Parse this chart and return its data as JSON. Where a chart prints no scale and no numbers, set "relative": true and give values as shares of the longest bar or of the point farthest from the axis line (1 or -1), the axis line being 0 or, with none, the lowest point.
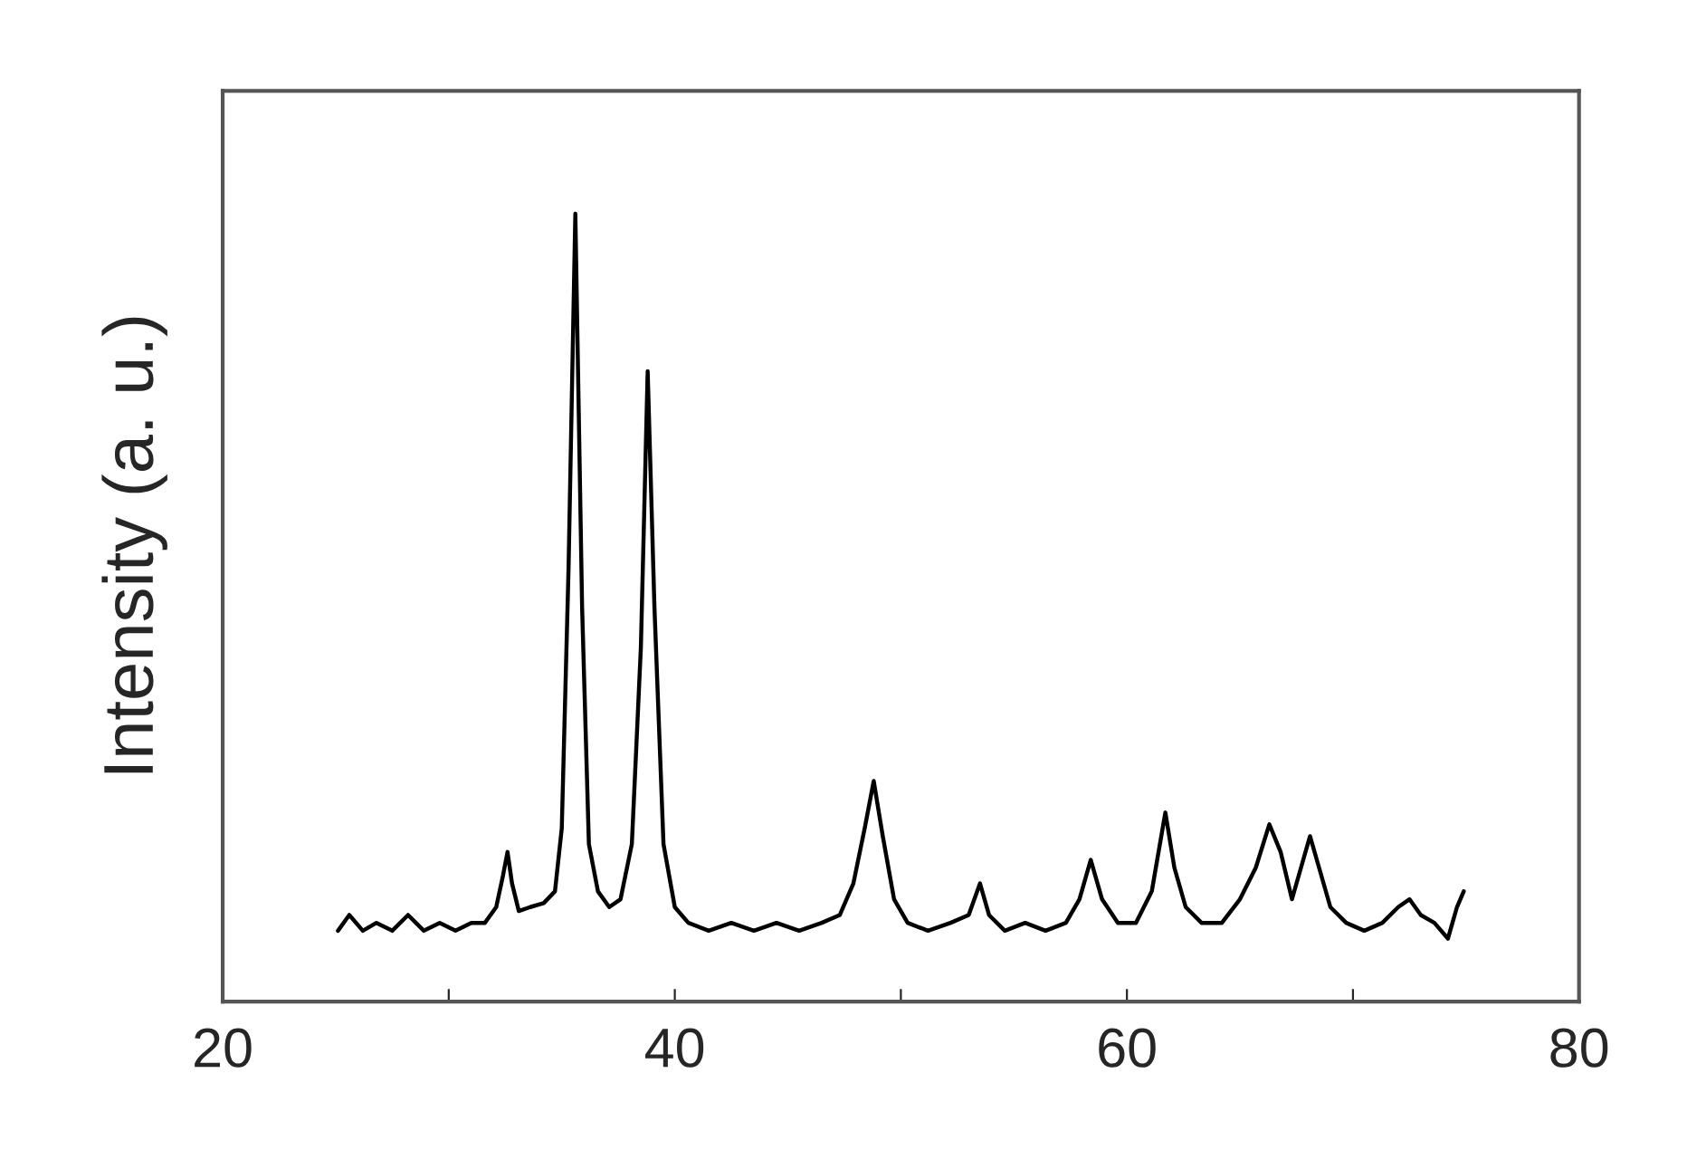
{
  "chart_data": {
    "type": "line",
    "relative": true,
    "ylabel": "Intensity (a. u.)",
    "xlim": [
      20,
      80
    ],
    "xticks": [
      20,
      {
        "value": 30,
        "label": null
      },
      40,
      {
        "value": 50,
        "label": null
      },
      60,
      {
        "value": 70,
        "label": null
      },
      80
    ],
    "tick_labels": "x",
    "grid": false,
    "legend": false,
    "series": [
      {
        "color": "#000000",
        "x": [
          25.1,
          25.6,
          26.2,
          26.8,
          27.5,
          28.2,
          28.9,
          29.6,
          30.3,
          31.0,
          31.6,
          32.1,
          32.4,
          32.6,
          32.8,
          33.1,
          33.6,
          34.2,
          34.7,
          35.0,
          35.3,
          35.6,
          35.9,
          36.2,
          36.6,
          37.1,
          37.6,
          38.1,
          38.5,
          38.8,
          39.1,
          39.5,
          40.0,
          40.6,
          41.5,
          42.5,
          43.5,
          44.5,
          45.5,
          46.5,
          47.3,
          47.9,
          48.4,
          48.8,
          49.2,
          49.7,
          50.3,
          51.2,
          52.2,
          53.0,
          53.5,
          53.9,
          54.6,
          55.5,
          56.4,
          57.3,
          57.9,
          58.4,
          58.9,
          59.6,
          60.4,
          61.1,
          61.7,
          62.1,
          62.6,
          63.3,
          64.2,
          65.0,
          65.7,
          66.3,
          66.8,
          67.3,
          67.7,
          68.1,
          68.5,
          69.0,
          69.7,
          70.5,
          71.3,
          72.0,
          72.5,
          73.0,
          73.6,
          74.2,
          74.6,
          74.9
        ],
        "values": [
          0.09,
          0.11,
          0.09,
          0.1,
          0.09,
          0.11,
          0.09,
          0.1,
          0.09,
          0.1,
          0.1,
          0.12,
          0.16,
          0.19,
          0.15,
          0.115,
          0.12,
          0.125,
          0.14,
          0.22,
          0.55,
          1.0,
          0.5,
          0.2,
          0.14,
          0.12,
          0.13,
          0.2,
          0.45,
          0.8,
          0.5,
          0.2,
          0.12,
          0.1,
          0.09,
          0.1,
          0.09,
          0.1,
          0.09,
          0.1,
          0.11,
          0.15,
          0.22,
          0.28,
          0.21,
          0.13,
          0.1,
          0.09,
          0.1,
          0.11,
          0.15,
          0.11,
          0.09,
          0.1,
          0.09,
          0.1,
          0.13,
          0.18,
          0.13,
          0.1,
          0.1,
          0.14,
          0.24,
          0.17,
          0.12,
          0.1,
          0.1,
          0.13,
          0.17,
          0.225,
          0.19,
          0.13,
          0.17,
          0.21,
          0.17,
          0.12,
          0.1,
          0.09,
          0.1,
          0.12,
          0.13,
          0.11,
          0.1,
          0.08,
          0.12,
          0.14
        ]
      }
    ]
  }
}
